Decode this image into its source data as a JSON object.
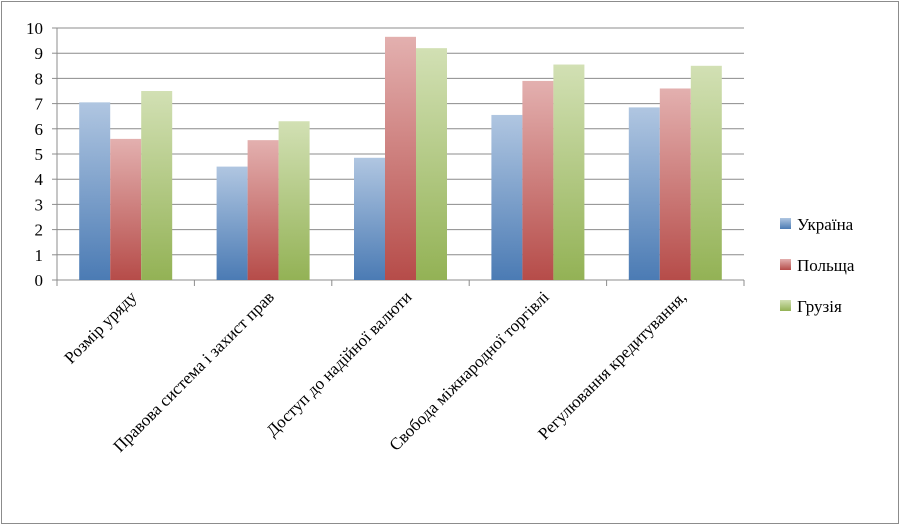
{
  "chart_data": {
    "type": "bar",
    "title": "",
    "xlabel": "",
    "ylabel": "",
    "ylim": [
      0,
      10
    ],
    "yticks": [
      0,
      1,
      2,
      3,
      4,
      5,
      6,
      7,
      8,
      9,
      10
    ],
    "grid": true,
    "legend_position": "right",
    "categories": [
      "Розмір уряду",
      "Правова система і захист прав",
      "Доступ до надійної валюти",
      "Свобода міжнародної торгівлі",
      "Регулювання кредитування,"
    ],
    "series": [
      {
        "name": "Україна",
        "color": "#4f81bd",
        "values": [
          7.05,
          4.5,
          4.85,
          6.55,
          6.85
        ]
      },
      {
        "name": "Польща",
        "color": "#c0504d",
        "values": [
          5.6,
          5.55,
          9.65,
          7.9,
          7.6
        ]
      },
      {
        "name": "Грузія",
        "color": "#9bbb59",
        "values": [
          7.5,
          6.3,
          9.2,
          8.55,
          8.5
        ]
      }
    ]
  }
}
